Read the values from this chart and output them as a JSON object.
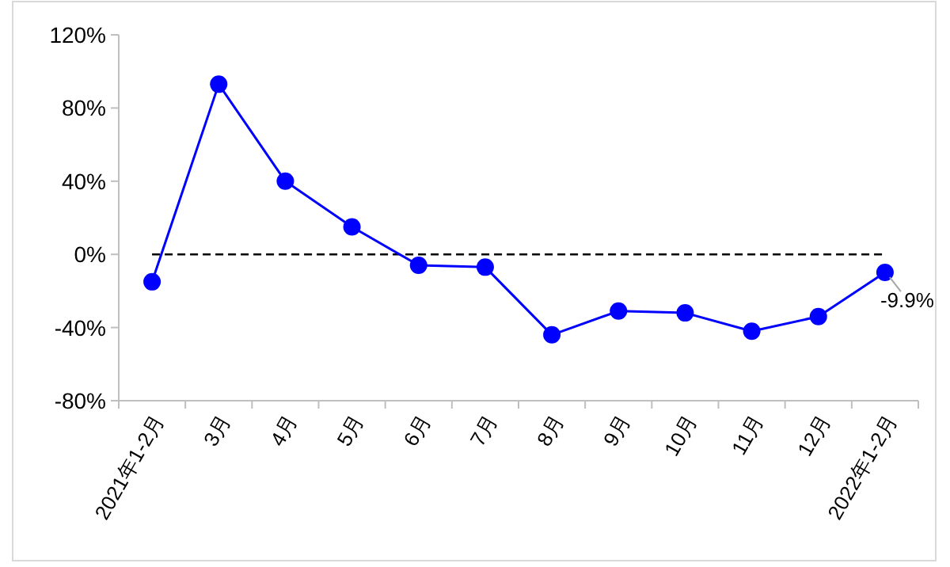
{
  "chart_data": {
    "type": "line",
    "categories": [
      "2021年1-2月",
      "3月",
      "4月",
      "5月",
      "6月",
      "7月",
      "8月",
      "9月",
      "10月",
      "11月",
      "12月",
      "2022年1-2月"
    ],
    "series": [
      {
        "color": "#0000ff",
        "values": [
          -15,
          93,
          40,
          15,
          -6,
          -7,
          -44,
          -31,
          -32,
          -42,
          -34,
          -9.9
        ],
        "value_labels": [
          null,
          null,
          null,
          null,
          null,
          null,
          null,
          null,
          null,
          null,
          null,
          "-9.9%"
        ]
      }
    ],
    "ylim": [
      -80,
      120
    ],
    "yticks": [
      {
        "value": -80,
        "label": "-80%"
      },
      {
        "value": -40,
        "label": "-40%"
      },
      {
        "value": 0,
        "label": "0%"
      },
      {
        "value": 40,
        "label": "40%"
      },
      {
        "value": 80,
        "label": "80%"
      },
      {
        "value": 120,
        "label": "120%"
      }
    ],
    "ref_lines": [
      {
        "axis": "y",
        "value": 0,
        "color": "#000000",
        "line_style": "dashed"
      }
    ],
    "marker": "circle",
    "line_style": "solid",
    "grid": false
  }
}
